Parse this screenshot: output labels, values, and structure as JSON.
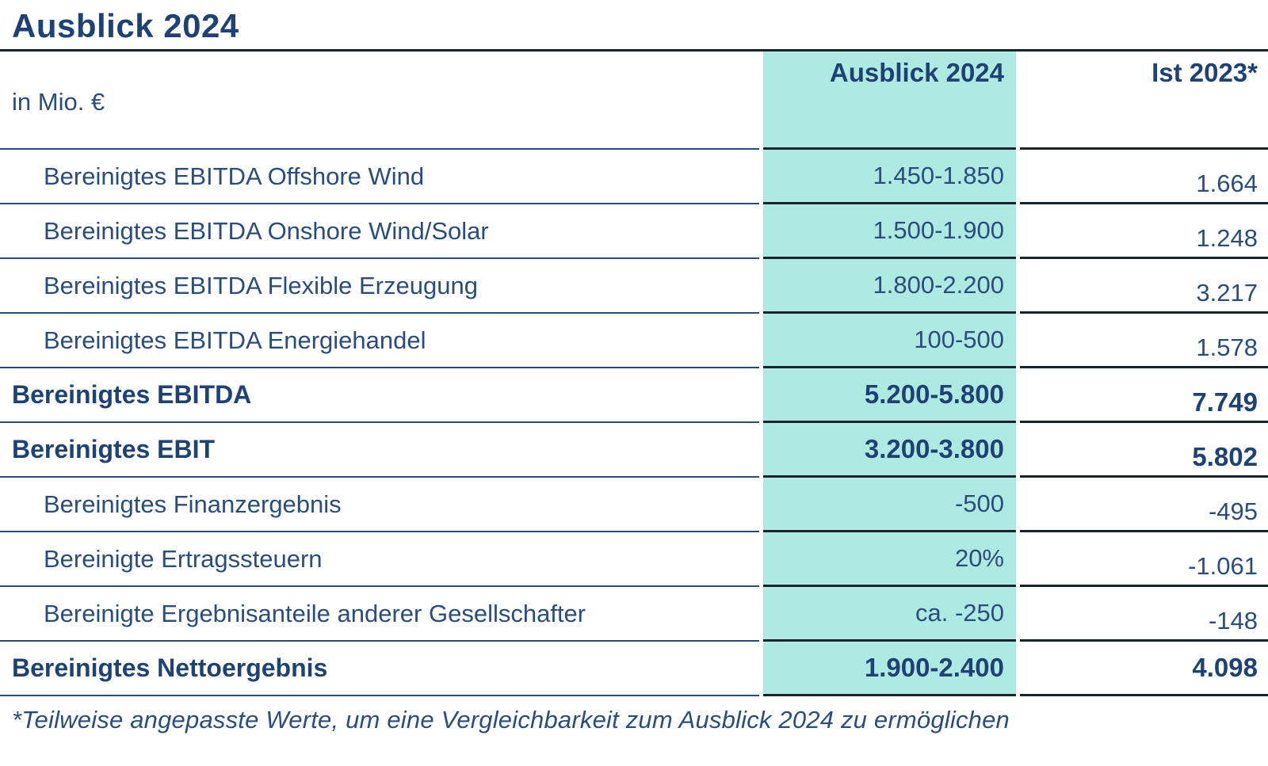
{
  "title": "Ausblick 2024",
  "table": {
    "unit_label": "in Mio. €",
    "columns": {
      "outlook": "Ausblick 2024",
      "actual": "Ist 2023*"
    },
    "rows": [
      {
        "label": "Bereinigtes EBITDA Offshore Wind",
        "outlook": "1.450-1.850",
        "actual": "1.664",
        "bold": false,
        "indent": true
      },
      {
        "label": "Bereinigtes EBITDA Onshore Wind/Solar",
        "outlook": "1.500-1.900",
        "actual": "1.248",
        "bold": false,
        "indent": true
      },
      {
        "label": "Bereinigtes EBITDA Flexible Erzeugung",
        "outlook": "1.800-2.200",
        "actual": "3.217",
        "bold": false,
        "indent": true
      },
      {
        "label": "Bereinigtes EBITDA Energiehandel",
        "outlook": "100-500",
        "actual": "1.578",
        "bold": false,
        "indent": true
      },
      {
        "label": "Bereinigtes EBITDA",
        "outlook": "5.200-5.800",
        "actual": "7.749",
        "bold": true,
        "indent": false
      },
      {
        "label": "Bereinigtes EBIT",
        "outlook": "3.200-3.800",
        "actual": "5.802",
        "bold": true,
        "indent": false
      },
      {
        "label": "Bereinigtes Finanzergebnis",
        "outlook": "-500",
        "actual": "-495",
        "bold": false,
        "indent": true
      },
      {
        "label": "Bereinigte Ertragssteuern",
        "outlook": "20%",
        "actual": "-1.061",
        "bold": false,
        "indent": true
      },
      {
        "label": "Bereinigte Ergebnisanteile anderer Gesellschafter",
        "outlook": "ca. -250",
        "actual": "-148",
        "bold": false,
        "indent": true
      },
      {
        "label": "Bereinigtes Nettoergebnis",
        "outlook": "1.900-2.400",
        "actual": "4.098",
        "bold": true,
        "indent": false
      }
    ],
    "footnote": "*Teilweise angepasste Werte, um eine Vergleichbarkeit zum Ausblick 2024 zu ermöglichen"
  },
  "colors": {
    "highlight_column_teal": "#aeeae2",
    "text_navy": "#2b4d7e",
    "text_navy_bold": "#1f4274",
    "line_navy": "#2b4a7e",
    "line_dark": "#1b242b",
    "background": "#ffffff"
  }
}
